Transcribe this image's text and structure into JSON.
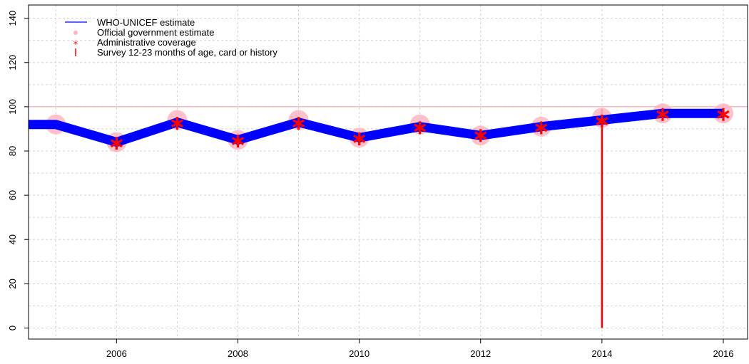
{
  "chart_data": {
    "type": "line",
    "title": "",
    "xlabel": "",
    "ylabel": "",
    "xlim": [
      2004.55,
      2016.4
    ],
    "ylim": [
      -5,
      146
    ],
    "x_ticks": [
      2006,
      2008,
      2010,
      2012,
      2014,
      2016
    ],
    "y_ticks": [
      0,
      20,
      40,
      60,
      80,
      100,
      120,
      140
    ],
    "grid": true,
    "legend_position": "top-left",
    "reference_line_y": 100,
    "colors": {
      "who_unicef": "#0000ff",
      "official": "#ffb6c1",
      "administrative": "#ff0000",
      "survey": "#ff0000",
      "reference": "#ff9999"
    },
    "legend": [
      {
        "label": "WHO-UNICEF estimate",
        "marker": "line"
      },
      {
        "label": "Official government estimate",
        "marker": "dot"
      },
      {
        "label": "Administrative coverage",
        "marker": "star"
      },
      {
        "label": "Survey 12-23 months of age, card or history",
        "marker": "vbar"
      }
    ],
    "series": [
      {
        "name": "WHO-UNICEF estimate",
        "x": [
          2004,
          2005,
          2006,
          2007,
          2008,
          2009,
          2010,
          2011,
          2012,
          2013,
          2014,
          2015,
          2016
        ],
        "values": [
          92,
          92,
          84,
          93,
          85,
          93,
          86,
          91,
          87,
          91,
          94,
          97,
          97
        ]
      },
      {
        "name": "Official government estimate",
        "x": [
          2005,
          2006,
          2007,
          2008,
          2009,
          2010,
          2011,
          2012,
          2013,
          2014,
          2015,
          2016
        ],
        "values": [
          92,
          84,
          94,
          85,
          94,
          86,
          92,
          87,
          91,
          95,
          97,
          97
        ]
      },
      {
        "name": "Administrative coverage",
        "x": [
          2006,
          2007,
          2008,
          2009,
          2010,
          2011,
          2012,
          2013,
          2014,
          2015,
          2016
        ],
        "values": [
          83.5,
          92.5,
          84.5,
          92.5,
          85.5,
          90.5,
          87,
          90.5,
          93.5,
          96.5,
          96.5
        ]
      },
      {
        "name": "Survey 12-23 months of age, card or history",
        "x": [
          2014
        ],
        "values": [
          99
        ]
      }
    ]
  }
}
